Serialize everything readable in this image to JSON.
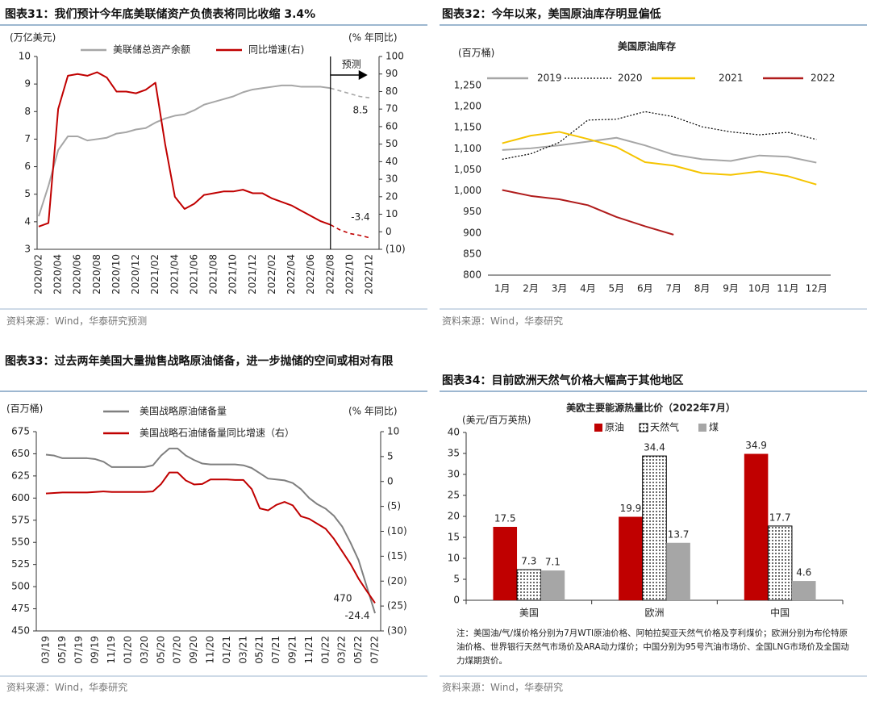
{
  "chart_data": [
    {
      "type": "line",
      "title": "图表31：我们预计今年底美联储资产负债表将同比收缩 3.4%",
      "y_label": "(万亿美元)",
      "y2_label": "(% 年同比)",
      "categories": [
        "2020/02",
        null,
        "2020/04",
        null,
        "2020/06",
        null,
        "2020/08",
        null,
        "2020/10",
        null,
        "2020/12",
        null,
        "2021/02",
        null,
        "2021/04",
        null,
        "2021/06",
        null,
        "2021/08",
        null,
        "2021/10",
        null,
        "2021/12",
        null,
        "2022/02",
        null,
        "2022/04",
        null,
        "2022/06",
        null,
        "2022/08",
        null,
        "2022/10",
        null,
        "2022/12"
      ],
      "series": [
        {
          "name": "美联储总资产余额",
          "color": "#a6a6a6",
          "values": [
            4.2,
            5.3,
            6.6,
            7.1,
            7.1,
            6.95,
            7.0,
            7.05,
            7.2,
            7.25,
            7.35,
            7.4,
            7.6,
            7.75,
            7.85,
            7.9,
            8.05,
            8.25,
            8.35,
            8.45,
            8.55,
            8.7,
            8.8,
            8.85,
            8.9,
            8.95,
            8.95,
            8.9,
            8.9,
            8.9,
            8.85,
            8.75,
            8.65,
            8.55,
            8.5
          ]
        },
        {
          "name": "同比增速(右)",
          "color": "#c00000",
          "axis": "y2",
          "values": [
            3,
            5,
            70,
            89,
            90,
            89,
            91,
            88,
            80,
            80,
            79,
            81,
            85,
            50,
            20,
            13,
            16,
            21,
            22,
            23,
            23,
            24,
            22,
            22,
            19,
            17,
            15,
            12,
            9,
            6,
            4,
            1,
            -1,
            -2,
            -3.4
          ]
        }
      ],
      "annotations": [
        {
          "text": "预测",
          "x": "2022/08",
          "color": "#c00000"
        }
      ],
      "end_labels": true,
      "ylim": [
        3,
        10
      ],
      "yticks": [
        3,
        4,
        5,
        6,
        7,
        8,
        9,
        10
      ],
      "y2lim": [
        -10,
        100
      ],
      "y2ticks": [
        {
          "value": -10,
          "label": "(10)"
        },
        0,
        10,
        20,
        30,
        40,
        50,
        60,
        70,
        80,
        90,
        100
      ],
      "grid": false,
      "source": "资料来源：Wind，华泰研究预测"
    },
    {
      "type": "line",
      "title": "图表32：今年以来，美国原油库存明显偏低",
      "subtitle": "美国原油库存",
      "y_label": "(百万桶)",
      "categories": [
        "1月",
        "2月",
        "3月",
        "4月",
        "5月",
        "6月",
        "7月",
        "8月",
        "9月",
        "10月",
        "11月",
        "12月"
      ],
      "series": [
        {
          "name": "2019",
          "color": "#a6a6a6",
          "values": [
            1097,
            1101,
            1108,
            1117,
            1126,
            1108,
            1086,
            1075,
            1071,
            1084,
            1081,
            1067
          ]
        },
        {
          "name": "2020",
          "color": "#000000",
          "dash": "dotted",
          "values": [
            1075,
            1088,
            1115,
            1168,
            1170,
            1188,
            1176,
            1152,
            1140,
            1133,
            1139,
            1122
          ]
        },
        {
          "name": "2021",
          "color": "#f5c400",
          "values": [
            1113,
            1131,
            1140,
            1123,
            1104,
            1068,
            1060,
            1042,
            1038,
            1046,
            1035,
            1015
          ]
        },
        {
          "name": "2022",
          "color": "#b01c1c",
          "values": [
            1002,
            988,
            980,
            966,
            938,
            916,
            896,
            null,
            null,
            null,
            null,
            null
          ]
        }
      ],
      "ylim": [
        800,
        1250
      ],
      "yticks": [
        800,
        850,
        900,
        950,
        {
          "value": 1000,
          "label": "1,000"
        },
        {
          "value": 1050,
          "label": "1,050"
        },
        {
          "value": 1100,
          "label": "1,100"
        },
        {
          "value": 1150,
          "label": "1,150"
        },
        {
          "value": 1200,
          "label": "1,200"
        },
        {
          "value": 1250,
          "label": "1,250"
        }
      ],
      "grid": false,
      "source": "资料来源：Wind，华泰研究"
    },
    {
      "type": "line",
      "title": "图表33：过去两年美国大量抛售战略原油储备，进一步抛储的空间或相对有限",
      "y_label": "(百万桶)",
      "y2_label": "(% 年同比)",
      "categories": [
        "03/19",
        null,
        "05/19",
        null,
        "07/19",
        null,
        "09/19",
        null,
        "11/19",
        null,
        "01/20",
        null,
        "03/20",
        null,
        "05/20",
        null,
        "07/20",
        null,
        "09/20",
        null,
        "11/20",
        null,
        "01/21",
        null,
        "03/21",
        null,
        "05/21",
        null,
        "07/21",
        null,
        "09/21",
        null,
        "11/21",
        null,
        "01/22",
        null,
        "03/22",
        null,
        "05/22",
        null,
        "07/22"
      ],
      "series": [
        {
          "name": "美国战略原油储备量",
          "color": "#7f7f7f",
          "values": [
            649,
            648,
            645,
            645,
            645,
            645,
            644,
            641,
            635,
            635,
            635,
            635,
            635,
            637,
            648,
            656,
            656,
            648,
            643,
            639,
            638,
            638,
            638,
            638,
            637,
            634,
            628,
            622,
            621,
            620,
            617,
            610,
            600,
            593,
            588,
            580,
            568,
            550,
            530,
            500,
            470
          ]
        },
        {
          "name": "美国战略石油储备量同比增速（右）",
          "color": "#c00000",
          "axis": "y2",
          "values": [
            -2.4,
            -2.3,
            -2.2,
            -2.2,
            -2.2,
            -2.2,
            -2.1,
            -2.0,
            -2.1,
            -2.1,
            -2.1,
            -2.1,
            -2.1,
            -2.0,
            -0.5,
            1.8,
            1.8,
            0.2,
            -0.6,
            -0.5,
            0.4,
            0.4,
            0.4,
            0.3,
            0.3,
            -1.5,
            -5.4,
            -5.8,
            -4.7,
            -4.1,
            -4.8,
            -7,
            -7.5,
            -8.5,
            -9.5,
            -11.5,
            -14,
            -16.5,
            -19.5,
            -22,
            -24.4
          ]
        }
      ],
      "end_labels": true,
      "ylim": [
        450,
        675
      ],
      "yticks": [
        450,
        475,
        500,
        525,
        550,
        575,
        600,
        625,
        650,
        675
      ],
      "y2lim": [
        -30,
        10
      ],
      "y2ticks": [
        {
          "value": -30,
          "label": "(30)"
        },
        {
          "value": -25,
          "label": "(25)"
        },
        {
          "value": -20,
          "label": "(20)"
        },
        {
          "value": -15,
          "label": "(15)"
        },
        {
          "value": -10,
          "label": "(10)"
        },
        {
          "value": -5,
          "label": "(5)"
        },
        0,
        5,
        10
      ],
      "grid": false,
      "source": "资料来源：Wind，华泰研究"
    },
    {
      "type": "bar",
      "title": "图表34：目前欧洲天然气价格大幅高于其他地区",
      "subtitle": "美欧主要能源热量比价（2022年7月）",
      "y_label": "(美元/百万英热)",
      "categories": [
        "美国",
        "欧洲",
        "中国"
      ],
      "series": [
        {
          "name": "原油",
          "color": "#c00000",
          "label_color": "#c00000",
          "values": [
            17.5,
            19.9,
            34.9
          ]
        },
        {
          "name": "天然气",
          "color": "#000000",
          "pattern": "dots",
          "label_color": "#222222",
          "values": [
            7.3,
            34.4,
            17.7
          ]
        },
        {
          "name": "煤",
          "color": "#a6a6a6",
          "label_color": "#222222",
          "values": [
            7.1,
            13.7,
            4.6
          ]
        }
      ],
      "ylim": [
        0,
        40
      ],
      "yticks": [
        0,
        5,
        10,
        15,
        20,
        25,
        30,
        35,
        40
      ],
      "grid": false,
      "note": "注：美国油/气/煤价格分别为7月WTI原油价格、阿帕拉契亚天然气价格及亨利煤价；欧洲分别为布伦特原油价格、世界银行天然气市场价及ARA动力煤价；中国分别为95号汽油市场价、全国LNG市场价及全国动力煤期货价。",
      "source": "资料来源：Wind，华泰研究"
    }
  ]
}
